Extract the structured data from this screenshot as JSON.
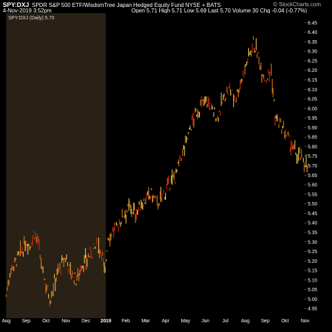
{
  "header": {
    "ticker": "SPY:DXJ",
    "fullname": "SPDR S&P 500 ETF/WisdomTree Japan Hedged Equity Fund NYSE + BATS",
    "date": "4-Nov-2019 3:52pm",
    "ohlc": "Open 5.71  High 5.71  Low 5.69  Last 5.70  Volume 30  Chg -0.04 (-0.77%)",
    "brand": "© StockCharts.com"
  },
  "legend_label": "SPY:DXJ (Daily) 5.70",
  "colors": {
    "background": "#000000",
    "highlight_region": "#2a2116",
    "bar_yellow": "#e8c84a",
    "bar_orange": "#e07a1a",
    "bar_red": "#d42a0a",
    "axis_text": "#ffffff"
  },
  "chart_data": {
    "type": "ohlc-bars",
    "title": "SPY:DXJ (Daily) 5.70",
    "ylim": [
      4.9,
      6.5
    ],
    "yticks": [
      "4.95",
      "5.00",
      "5.05",
      "5.10",
      "5.15",
      "5.20",
      "5.25",
      "5.30",
      "5.35",
      "5.40",
      "5.45",
      "5.50",
      "5.55",
      "5.60",
      "5.65",
      "5.70",
      "5.75",
      "5.80",
      "5.85",
      "5.90",
      "5.95",
      "6.00",
      "6.05",
      "6.10",
      "6.15",
      "6.20",
      "6.25",
      "6.30",
      "6.35",
      "6.40",
      "6.45"
    ],
    "xticks": [
      "Aug",
      "Sep",
      "Oct",
      "Nov",
      "Dec",
      "2019",
      "Feb",
      "Mar",
      "Apr",
      "May",
      "Jun",
      "Jul",
      "Aug",
      "Sep",
      "Oct",
      "Nov"
    ],
    "xtick_months": [
      0,
      1,
      2,
      3,
      4,
      5,
      6,
      7,
      8,
      9,
      10,
      11,
      12,
      13,
      14,
      15
    ],
    "highlight_months": [
      0,
      5
    ],
    "price_path": [
      [
        0.0,
        5.02
      ],
      [
        0.2,
        5.15
      ],
      [
        0.5,
        5.2
      ],
      [
        0.8,
        5.25
      ],
      [
        1.0,
        5.3
      ],
      [
        1.2,
        5.28
      ],
      [
        1.4,
        5.35
      ],
      [
        1.6,
        5.3
      ],
      [
        1.8,
        5.15
      ],
      [
        2.0,
        5.08
      ],
      [
        2.2,
        5.0
      ],
      [
        2.5,
        5.12
      ],
      [
        2.8,
        5.18
      ],
      [
        3.0,
        5.22
      ],
      [
        3.2,
        5.15
      ],
      [
        3.5,
        5.1
      ],
      [
        3.8,
        5.18
      ],
      [
        4.0,
        5.2
      ],
      [
        4.3,
        5.25
      ],
      [
        4.6,
        5.28
      ],
      [
        4.8,
        5.25
      ],
      [
        4.95,
        5.12
      ],
      [
        5.1,
        5.32
      ],
      [
        5.3,
        5.35
      ],
      [
        5.6,
        5.38
      ],
      [
        5.9,
        5.45
      ],
      [
        6.2,
        5.48
      ],
      [
        6.5,
        5.45
      ],
      [
        6.8,
        5.5
      ],
      [
        7.0,
        5.52
      ],
      [
        7.3,
        5.55
      ],
      [
        7.6,
        5.5
      ],
      [
        7.9,
        5.55
      ],
      [
        8.2,
        5.6
      ],
      [
        8.5,
        5.65
      ],
      [
        8.8,
        5.75
      ],
      [
        9.1,
        5.85
      ],
      [
        9.4,
        5.95
      ],
      [
        9.7,
        6.0
      ],
      [
        10.0,
        6.05
      ],
      [
        10.3,
        6.0
      ],
      [
        10.6,
        5.95
      ],
      [
        10.9,
        6.05
      ],
      [
        11.2,
        6.1
      ],
      [
        11.5,
        6.05
      ],
      [
        11.8,
        6.15
      ],
      [
        12.1,
        6.25
      ],
      [
        12.4,
        6.35
      ],
      [
        12.7,
        6.25
      ],
      [
        13.0,
        6.15
      ],
      [
        13.3,
        6.2
      ],
      [
        13.5,
        5.95
      ],
      [
        13.8,
        5.9
      ],
      [
        14.1,
        5.85
      ],
      [
        14.4,
        5.78
      ],
      [
        14.7,
        5.75
      ],
      [
        15.0,
        5.72
      ],
      [
        15.1,
        5.7
      ]
    ]
  }
}
